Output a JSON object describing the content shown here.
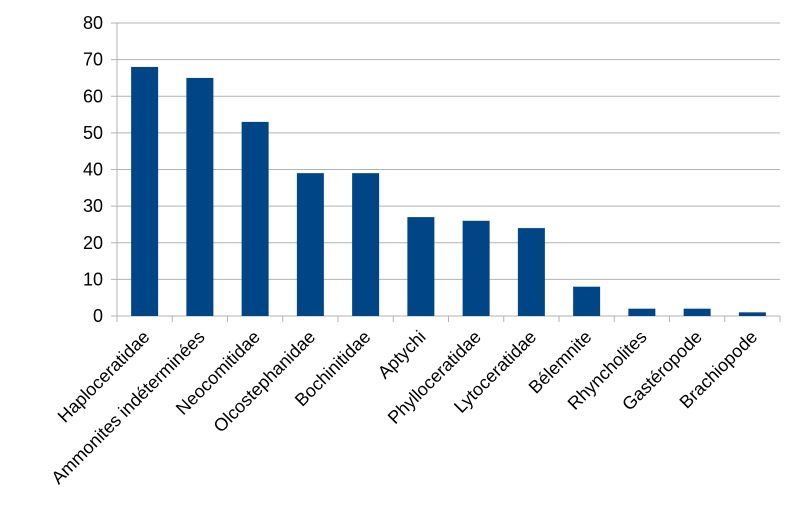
{
  "chart_data": {
    "type": "bar",
    "title": "",
    "xlabel": "",
    "ylabel": "",
    "categories": [
      "Haploceratidae",
      "Ammonites indéterminées",
      "Neocomitidae",
      "Olcostephanidae",
      "Bochinitidae",
      "Aptychi",
      "Phylloceratidae",
      "Lytoceratidae",
      "Bélemnite",
      "Rhyncholites",
      "Gastéropode",
      "Brachiopode"
    ],
    "values": [
      68,
      65,
      53,
      39,
      39,
      27,
      26,
      24,
      8,
      2,
      2,
      1
    ],
    "ylim": [
      0,
      80
    ],
    "yticks": [
      "0",
      "10",
      "20",
      "30",
      "40",
      "50",
      "60",
      "70",
      "80"
    ],
    "grid": true,
    "legend": "none",
    "colors": {
      "bar": "#004586",
      "grid": "#b3b3b3",
      "axis": "#b3b3b3"
    }
  }
}
